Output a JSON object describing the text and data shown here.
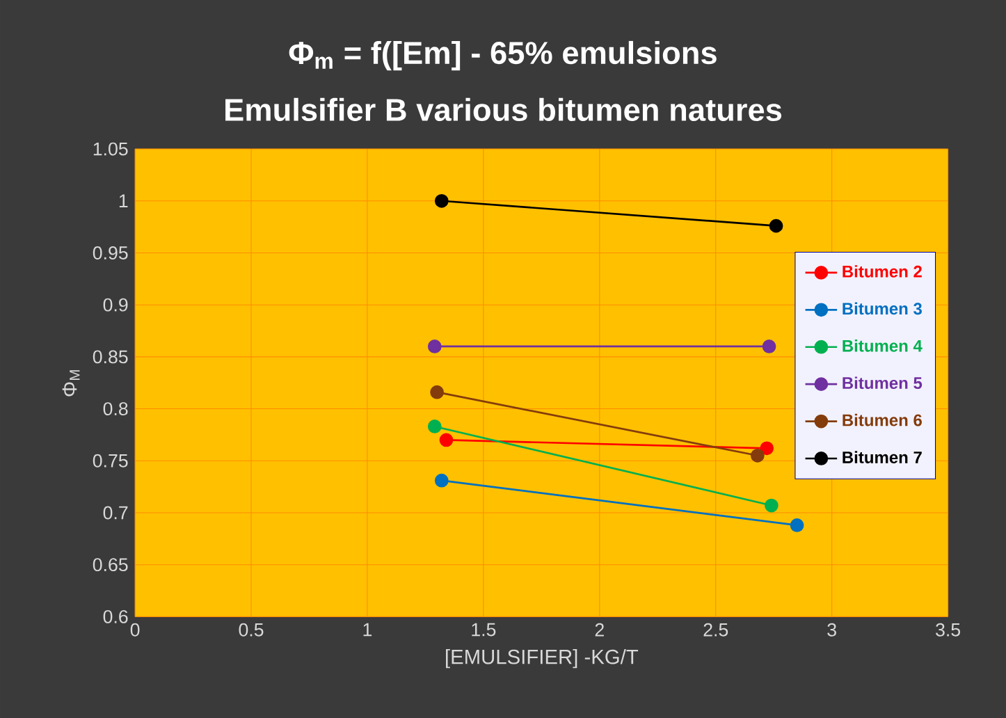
{
  "chart_data": {
    "type": "line",
    "title": "Φ$_{m}$ = f([Em] - 65% emulsions",
    "subtitle": "Emulsifier B various bitumen natures",
    "xlabel": "[EMULSIFIER] -KG/T",
    "ylabel": "Φ$_{M}$",
    "xlim": [
      0,
      3.5
    ],
    "xticks": [
      0,
      0.5,
      1,
      1.5,
      2,
      2.5,
      3,
      3.5
    ],
    "ylim": [
      0.6,
      1.05
    ],
    "yticks": [
      0.6,
      0.65,
      0.7,
      0.75,
      0.8,
      0.85,
      0.9,
      0.95,
      1,
      1.05
    ],
    "grid": true,
    "legend": "right",
    "marker": "circle",
    "line_style": "solid",
    "series": [
      {
        "name": "Bitumen 2",
        "color": "#ff0000",
        "x": [
          1.34,
          2.72
        ],
        "values": [
          0.77,
          0.762
        ]
      },
      {
        "name": "Bitumen 3",
        "color": "#0070c0",
        "x": [
          1.32,
          2.85
        ],
        "values": [
          0.731,
          0.688
        ]
      },
      {
        "name": "Bitumen 4",
        "color": "#00b050",
        "x": [
          1.29,
          2.74
        ],
        "values": [
          0.783,
          0.707
        ]
      },
      {
        "name": "Bitumen 5",
        "color": "#7030a0",
        "x": [
          1.29,
          2.73
        ],
        "values": [
          0.86,
          0.86
        ]
      },
      {
        "name": "Bitumen 6",
        "color": "#843c0c",
        "x": [
          1.3,
          2.68
        ],
        "values": [
          0.816,
          0.755
        ]
      },
      {
        "name": "Bitumen 7",
        "color": "#000000",
        "x": [
          1.32,
          2.76
        ],
        "values": [
          1.0,
          0.976
        ]
      }
    ]
  }
}
